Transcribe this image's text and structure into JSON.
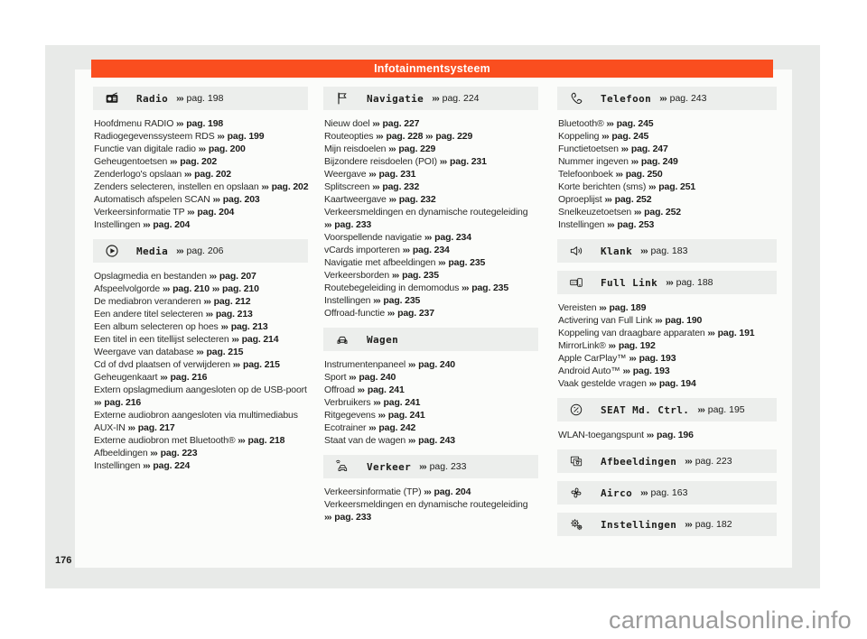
{
  "banner": {
    "title": "Infotainmentsysteem",
    "color": "#fa4e1f"
  },
  "page_number": "176",
  "watermark": "carmanualsonline.info",
  "ref_marker": "›››",
  "columns": [
    {
      "sections": [
        {
          "icon": "radio-icon",
          "label": "Radio",
          "page_ref": "pag. 198",
          "items": [
            {
              "text": "Hoofdmenu RADIO",
              "refs": [
                "pag. 198"
              ]
            },
            {
              "text": "Radiogegevenssysteem RDS",
              "refs": [
                "pag. 199"
              ]
            },
            {
              "text": "Functie van digitale radio",
              "refs": [
                "pag. 200"
              ]
            },
            {
              "text": "Geheugentoetsen",
              "refs": [
                "pag. 202"
              ]
            },
            {
              "text": "Zenderlogo's opslaan",
              "refs": [
                "pag. 202"
              ]
            },
            {
              "text": "Zenders selecteren, instellen en opslaan",
              "refs": [
                "pag. 202"
              ]
            },
            {
              "text": "Automatisch afspelen SCAN",
              "refs": [
                "pag. 203"
              ]
            },
            {
              "text": "Verkeersinformatie TP",
              "refs": [
                "pag. 204"
              ]
            },
            {
              "text": "Instellingen",
              "refs": [
                "pag. 204"
              ]
            }
          ]
        },
        {
          "icon": "play-icon",
          "label": "Media",
          "page_ref": "pag. 206",
          "items": [
            {
              "text": "Opslagmedia en bestanden",
              "refs": [
                "pag. 207"
              ]
            },
            {
              "text": "Afspeelvolgorde",
              "refs": [
                "pag. 210",
                "pag. 210"
              ]
            },
            {
              "text": "De mediabron veranderen",
              "refs": [
                "pag. 212"
              ]
            },
            {
              "text": "Een andere titel selecteren",
              "refs": [
                "pag. 213"
              ]
            },
            {
              "text": "Een album selecteren op hoes",
              "refs": [
                "pag. 213"
              ]
            },
            {
              "text": "Een titel in een titellijst selecteren",
              "refs": [
                "pag. 214"
              ]
            },
            {
              "text": "Weergave van database",
              "refs": [
                "pag. 215"
              ]
            },
            {
              "text": "Cd of dvd plaatsen of verwijderen",
              "refs": [
                "pag. 215"
              ]
            },
            {
              "text": "Geheugenkaart",
              "refs": [
                "pag. 216"
              ]
            },
            {
              "text": "Extern opslagmedium aangesloten op de USB-poort",
              "refs": [
                "pag. 216"
              ]
            },
            {
              "text": "Externe audiobron aangesloten via multimediabus AUX-IN",
              "refs": [
                "pag. 217"
              ]
            },
            {
              "text": "Externe audiobron met Bluetooth®",
              "refs": [
                "pag. 218"
              ]
            },
            {
              "text": "Afbeeldingen",
              "refs": [
                "pag. 223"
              ]
            },
            {
              "text": "Instellingen",
              "refs": [
                "pag. 224"
              ]
            }
          ]
        }
      ]
    },
    {
      "sections": [
        {
          "icon": "flag-icon",
          "label": "Navigatie",
          "page_ref": "pag. 224",
          "items": [
            {
              "text": "Nieuw doel",
              "refs": [
                "pag. 227"
              ]
            },
            {
              "text": "Routeopties",
              "refs": [
                "pag. 228",
                "pag. 229"
              ]
            },
            {
              "text": "Mijn reisdoelen",
              "refs": [
                "pag. 229"
              ]
            },
            {
              "text": "Bijzondere reisdoelen (POI)",
              "refs": [
                "pag. 231"
              ]
            },
            {
              "text": "Weergave",
              "refs": [
                "pag. 231"
              ]
            },
            {
              "text": "Splitscreen",
              "refs": [
                "pag. 232"
              ]
            },
            {
              "text": "Kaartweergave",
              "refs": [
                "pag. 232"
              ]
            },
            {
              "text": "Verkeersmeldingen en dynamische routegeleiding",
              "refs": [
                "pag. 233"
              ]
            },
            {
              "text": "Voorspellende navigatie",
              "refs": [
                "pag. 234"
              ]
            },
            {
              "text": "vCards importeren",
              "refs": [
                "pag. 234"
              ]
            },
            {
              "text": "Navigatie met afbeeldingen",
              "refs": [
                "pag. 235"
              ]
            },
            {
              "text": "Verkeersborden",
              "refs": [
                "pag. 235"
              ]
            },
            {
              "text": "Routebegeleiding in demomodus",
              "refs": [
                "pag. 235"
              ]
            },
            {
              "text": "Instellingen",
              "refs": [
                "pag. 235"
              ]
            },
            {
              "text": "Offroad-functie",
              "refs": [
                "pag. 237"
              ]
            }
          ]
        },
        {
          "icon": "car-icon",
          "label": "Wagen",
          "page_ref": null,
          "items": [
            {
              "text": "Instrumentenpaneel",
              "refs": [
                "pag. 240"
              ]
            },
            {
              "text": "Sport",
              "refs": [
                "pag. 240"
              ]
            },
            {
              "text": "Offroad",
              "refs": [
                "pag. 241"
              ]
            },
            {
              "text": "Verbruikers",
              "refs": [
                "pag. 241"
              ]
            },
            {
              "text": "Ritgegevens",
              "refs": [
                "pag. 241"
              ]
            },
            {
              "text": "Ecotrainer",
              "refs": [
                "pag. 242"
              ]
            },
            {
              "text": "Staat van de wagen",
              "refs": [
                "pag. 243"
              ]
            }
          ]
        },
        {
          "icon": "traffic-icon",
          "label": "Verkeer",
          "page_ref": "pag. 233",
          "items": [
            {
              "text": "Verkeersinformatie (TP)",
              "refs": [
                "pag. 204"
              ]
            },
            {
              "text": "Verkeersmeldingen en dynamische routegeleiding",
              "refs": [
                "pag. 233"
              ]
            }
          ]
        }
      ]
    },
    {
      "sections": [
        {
          "icon": "phone-icon",
          "label": "Telefoon",
          "page_ref": "pag. 243",
          "items": [
            {
              "text": "Bluetooth®",
              "refs": [
                "pag. 245"
              ]
            },
            {
              "text": "Koppeling",
              "refs": [
                "pag. 245"
              ]
            },
            {
              "text": "Functietoetsen",
              "refs": [
                "pag. 247"
              ]
            },
            {
              "text": "Nummer ingeven",
              "refs": [
                "pag. 249"
              ]
            },
            {
              "text": "Telefoonboek",
              "refs": [
                "pag. 250"
              ]
            },
            {
              "text": "Korte berichten (sms)",
              "refs": [
                "pag. 251"
              ]
            },
            {
              "text": "Oproeplijst",
              "refs": [
                "pag. 252"
              ]
            },
            {
              "text": "Snelkeuzetoetsen",
              "refs": [
                "pag. 252"
              ]
            },
            {
              "text": "Instellingen",
              "refs": [
                "pag. 253"
              ]
            }
          ]
        },
        {
          "icon": "speaker-icon",
          "label": "Klank",
          "page_ref": "pag. 183",
          "items": []
        },
        {
          "icon": "fulllink-icon",
          "label": "Full Link",
          "page_ref": "pag. 188",
          "items": [
            {
              "text": "Vereisten",
              "refs": [
                "pag. 189"
              ]
            },
            {
              "text": "Activering van Full Link",
              "refs": [
                "pag. 190"
              ]
            },
            {
              "text": "Koppeling van draagbare apparaten",
              "refs": [
                "pag. 191"
              ]
            },
            {
              "text": "MirrorLink®",
              "refs": [
                "pag. 192"
              ]
            },
            {
              "text": "Apple CarPlay™",
              "refs": [
                "pag. 193"
              ]
            },
            {
              "text": "Android Auto™",
              "refs": [
                "pag. 193"
              ]
            },
            {
              "text": "Vaak gestelde vragen",
              "refs": [
                "pag. 194"
              ]
            }
          ]
        },
        {
          "icon": "media-control-icon",
          "label": "SEAT Md. Ctrl.",
          "page_ref": "pag. 195",
          "items": [
            {
              "text": "WLAN-toegangspunt",
              "refs": [
                "pag. 196"
              ]
            }
          ]
        },
        {
          "icon": "images-icon",
          "label": "Afbeeldingen",
          "page_ref": "pag. 223",
          "items": []
        },
        {
          "icon": "fan-icon",
          "label": "Airco",
          "page_ref": "pag. 163",
          "items": []
        },
        {
          "icon": "gears-icon",
          "label": "Instellingen",
          "page_ref": "pag. 182",
          "items": []
        }
      ]
    }
  ]
}
